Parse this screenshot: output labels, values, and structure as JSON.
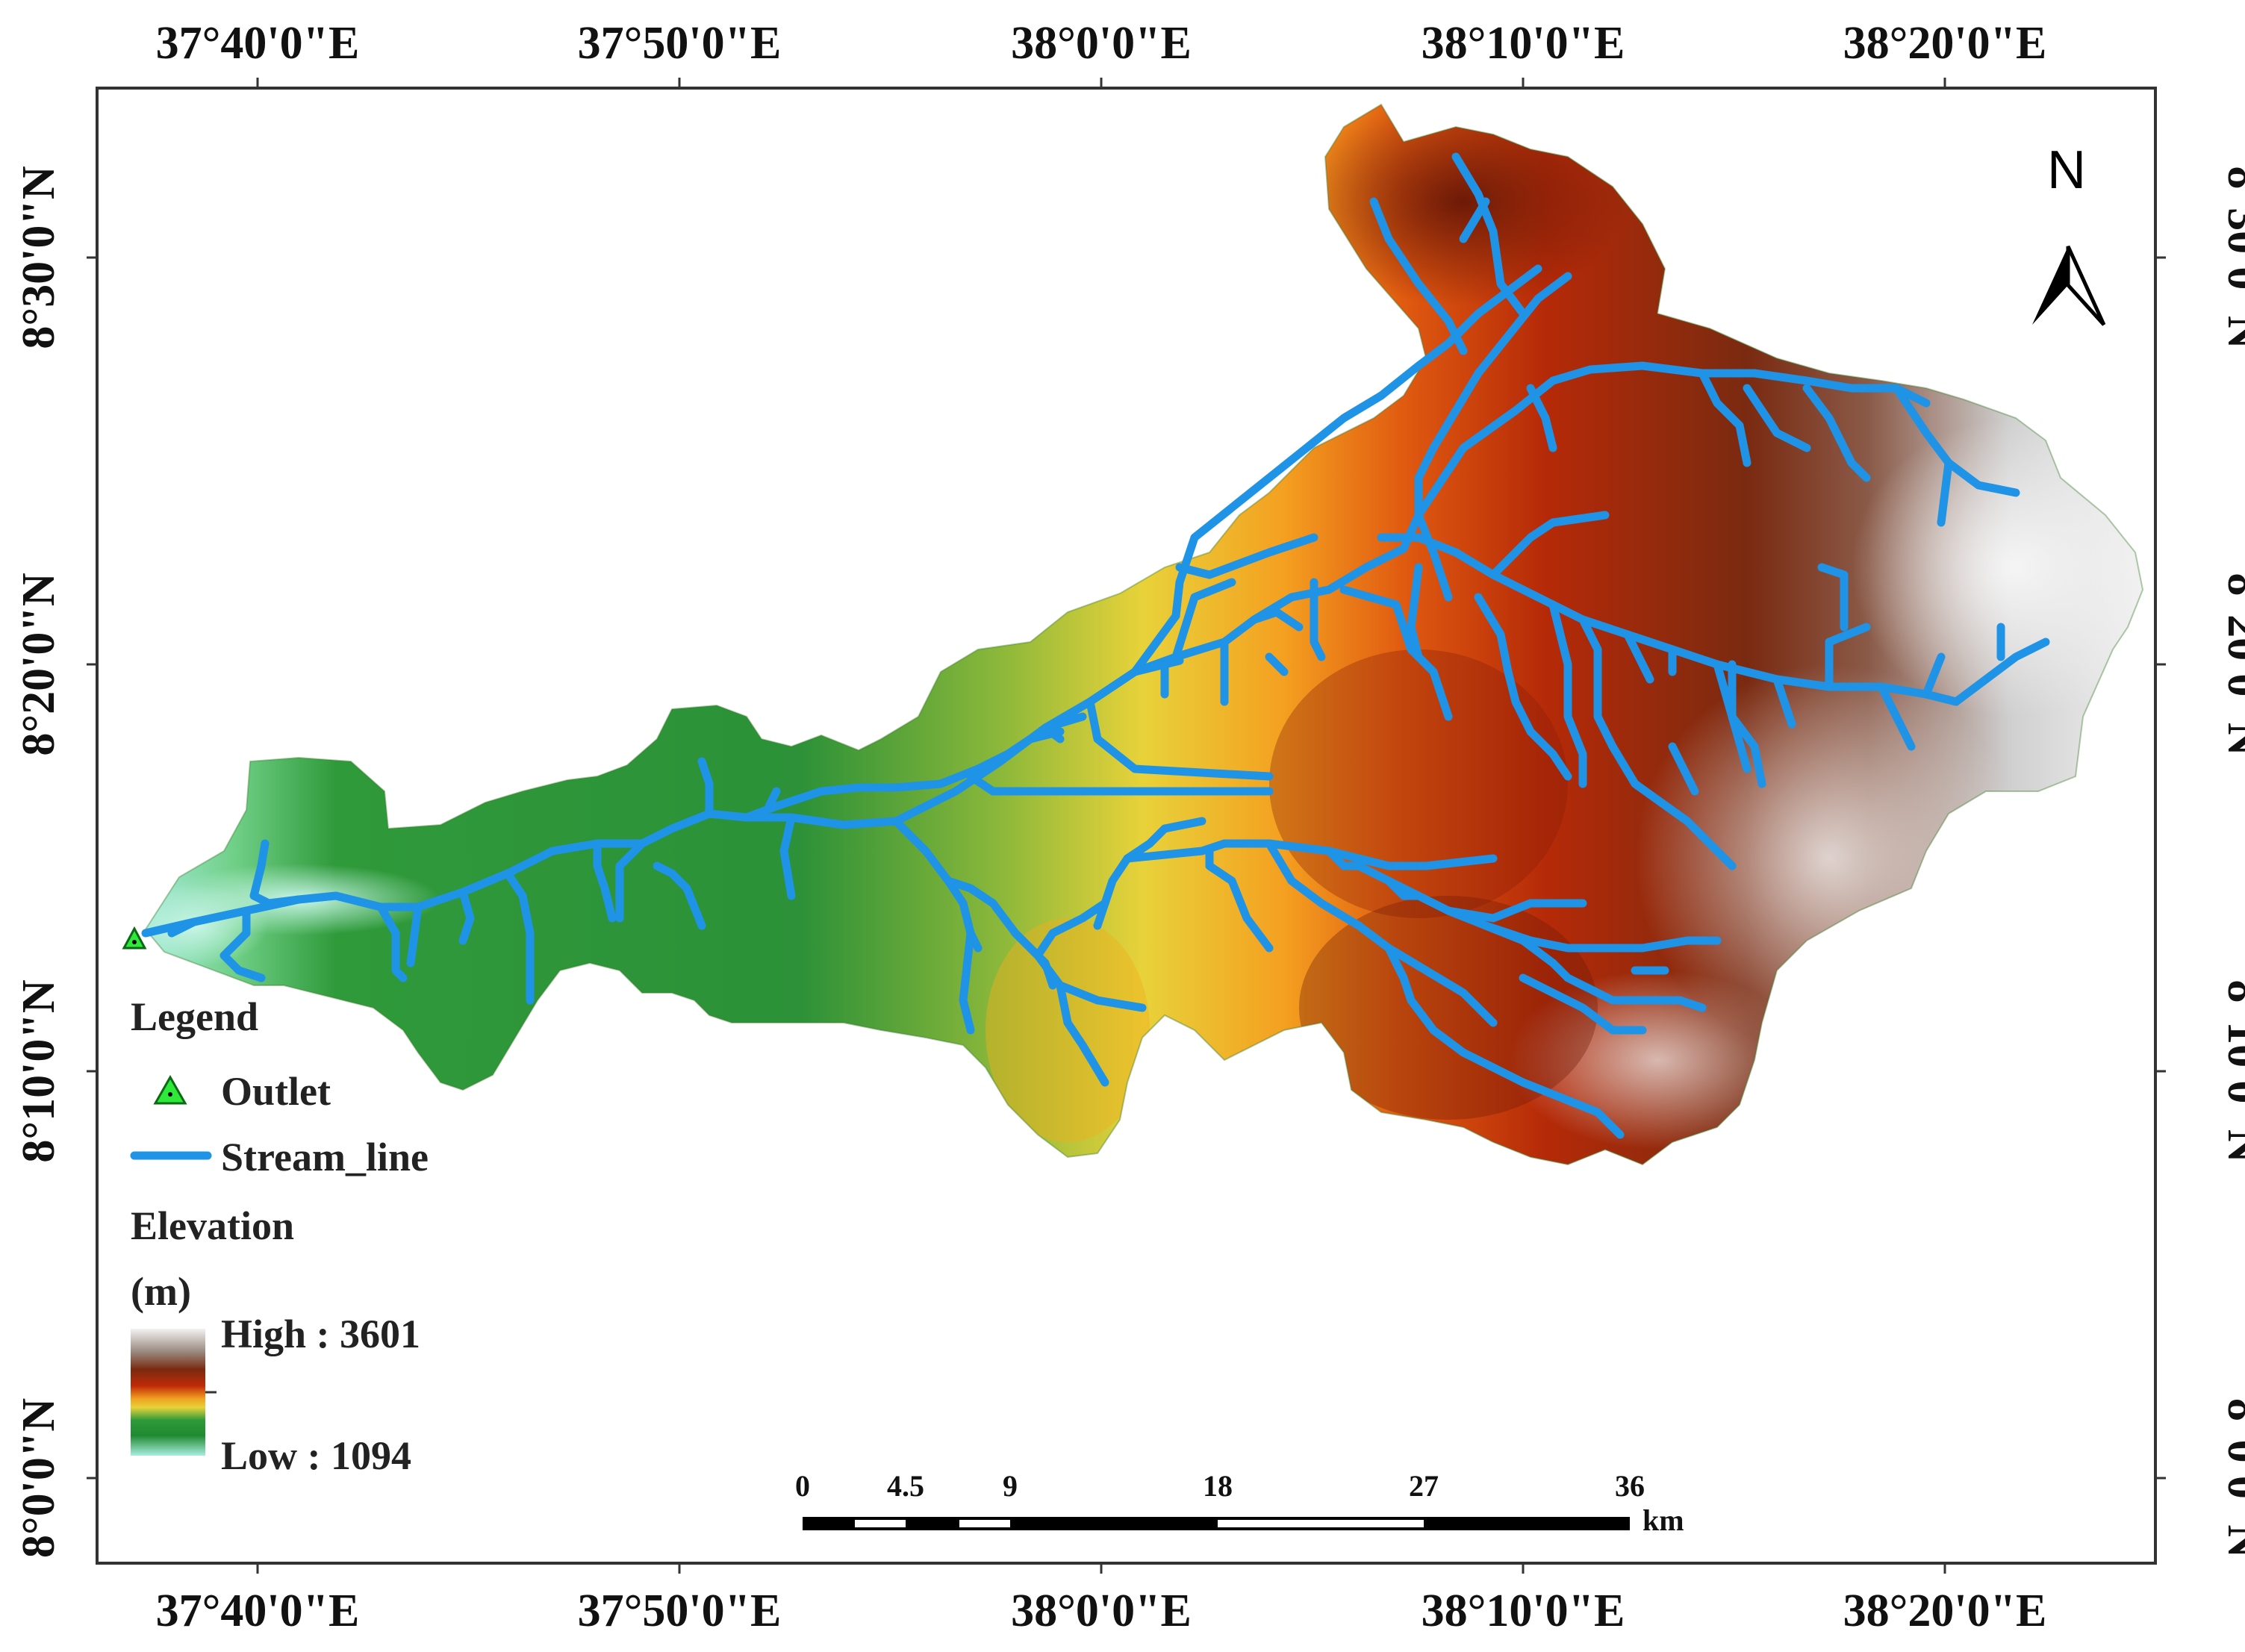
{
  "map": {
    "top_longitudes": [
      "37°40'0\"E",
      "37°50'0\"E",
      "38°0'0\"E",
      "38°10'0\"E",
      "38°20'0\"E"
    ],
    "bottom_longitudes": [
      "37°40'0\"E",
      "37°50'0\"E",
      "38°0'0\"E",
      "38°10'0\"E",
      "38°20'0\"E"
    ],
    "left_latitudes": [
      "8°30'0\"N",
      "8°20'0\"N",
      "8°10'0\"N",
      "8°0'0\"N"
    ],
    "right_latitudes": [
      "8°30'0\"N",
      "8°20'0\"N",
      "8°10'0\"N",
      "8°0'0\"N"
    ],
    "north_label": "N"
  },
  "legend": {
    "title": "Legend",
    "outlet_label": "Outlet",
    "stream_label": "Stream_line",
    "elevation_title": "Elevation",
    "elevation_unit": "(m)",
    "high_label": "High : 3601",
    "low_label": "Low : 1094"
  },
  "scale_bar": {
    "ticks": [
      "0",
      "4.5",
      "9",
      "18",
      "27",
      "36"
    ],
    "unit": "km"
  },
  "colors": {
    "stream": "#1f93e6",
    "outlet": "#2ee83a",
    "low": "#a9ede0",
    "green": "#2f9a3a",
    "yellow": "#e8d23a",
    "orange": "#f08a18",
    "red": "#b52a08",
    "brown": "#7a2a10",
    "high": "#f2f2f2"
  }
}
